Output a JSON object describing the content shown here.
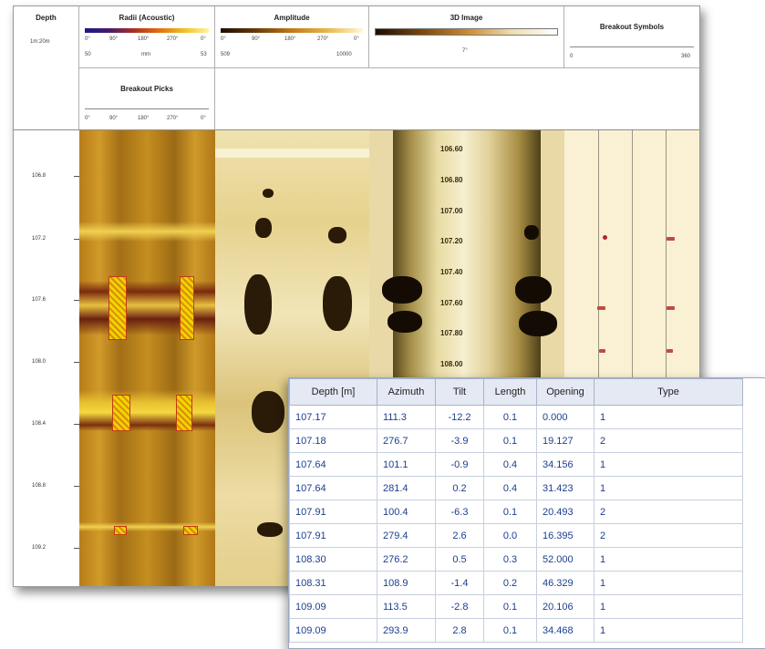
{
  "header": {
    "depth": {
      "title": "Depth",
      "scale": "1m:20m"
    },
    "radii": {
      "title": "Radii (Acoustic)",
      "ticks": [
        "0°",
        "90°",
        "180°",
        "270°",
        "0°"
      ],
      "min": "50",
      "unit": "mm",
      "max": "53"
    },
    "amplitude": {
      "title": "Amplitude",
      "ticks": [
        "0°",
        "90°",
        "180°",
        "270°",
        "0°"
      ],
      "min": "509",
      "max": "10000"
    },
    "image3d": {
      "title": "3D Image",
      "sub": "7°"
    },
    "breakout_symbols": {
      "title": "Breakout Symbols",
      "min": "0",
      "max": "360"
    },
    "breakout_picks": {
      "title": "Breakout Picks",
      "ticks": [
        "0°",
        "90°",
        "180°",
        "270°",
        "0°"
      ]
    }
  },
  "depth_labels": [
    "106.8",
    "107.2",
    "107.6",
    "108.0",
    "108.4",
    "108.8",
    "109.2"
  ],
  "image_depth_labels": [
    "106.60",
    "106.80",
    "107.00",
    "107.20",
    "107.40",
    "107.60",
    "107.80",
    "108.00"
  ],
  "table": {
    "columns": [
      "Depth [m]",
      "Azimuth",
      "Tilt",
      "Length",
      "Opening",
      "Type"
    ],
    "rows": [
      [
        "107.17",
        "111.3",
        "-12.2",
        "0.1",
        "0.000",
        "1"
      ],
      [
        "107.18",
        "276.7",
        "-3.9",
        "0.1",
        "19.127",
        "2"
      ],
      [
        "107.64",
        "101.1",
        "-0.9",
        "0.4",
        "34.156",
        "1"
      ],
      [
        "107.64",
        "281.4",
        "0.2",
        "0.4",
        "31.423",
        "1"
      ],
      [
        "107.91",
        "100.4",
        "-6.3",
        "0.1",
        "20.493",
        "2"
      ],
      [
        "107.91",
        "279.4",
        "2.6",
        "0.0",
        "16.395",
        "2"
      ],
      [
        "108.30",
        "276.2",
        "0.5",
        "0.3",
        "52.000",
        "1"
      ],
      [
        "108.31",
        "108.9",
        "-1.4",
        "0.2",
        "46.329",
        "1"
      ],
      [
        "109.09",
        "113.5",
        "-2.8",
        "0.1",
        "20.106",
        "1"
      ],
      [
        "109.09",
        "293.9",
        "2.8",
        "0.1",
        "34.468",
        "1"
      ]
    ]
  }
}
